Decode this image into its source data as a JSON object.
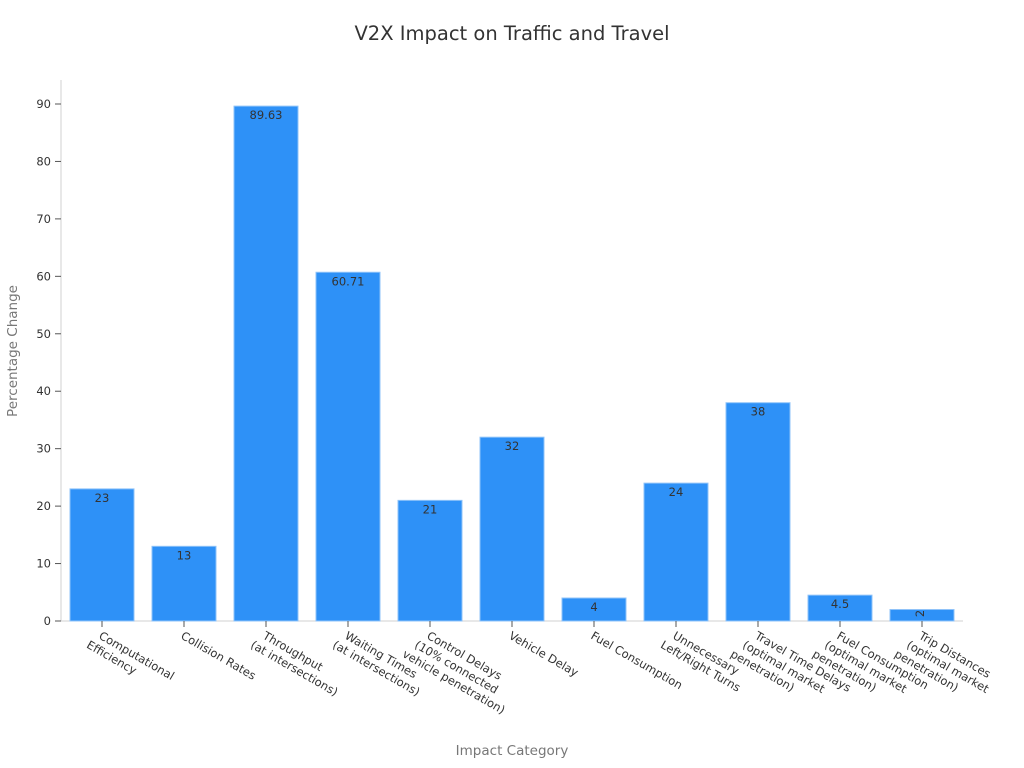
{
  "chart_data": {
    "type": "bar",
    "title": "V2X Impact on Traffic and Travel",
    "xlabel": "Impact Category",
    "ylabel": "Percentage Change",
    "ylim": [
      0,
      94
    ],
    "yticks": [
      0,
      10,
      20,
      30,
      40,
      50,
      60,
      70,
      80,
      90
    ],
    "grid": false,
    "legend": null,
    "bar_color": "#2e91f7",
    "categories": [
      [
        "Computational",
        "Efficiency"
      ],
      [
        "Collision Rates"
      ],
      [
        "Throughput",
        "(at intersections)"
      ],
      [
        "Waiting Times",
        "(at intersections)"
      ],
      [
        "Control Delays",
        "(10% connected",
        "vehicle penetration)"
      ],
      [
        "Vehicle Delay"
      ],
      [
        "Fuel Consumption"
      ],
      [
        "Unnecessary",
        "Left/Right Turns"
      ],
      [
        "Travel Time Delays",
        "(optimal market",
        "penetration)"
      ],
      [
        "Fuel Consumption",
        "(optimal market",
        "penetration)"
      ],
      [
        "Trip Distances",
        "(optimal market",
        "penetration)"
      ]
    ],
    "values": [
      23,
      13,
      89.63,
      60.71,
      21,
      32,
      4,
      24,
      38,
      4.5,
      2
    ],
    "value_labels": [
      "23",
      "13",
      "89.63",
      "60.71",
      "21",
      "32",
      "4",
      "24",
      "38",
      "4.5",
      "2"
    ]
  }
}
